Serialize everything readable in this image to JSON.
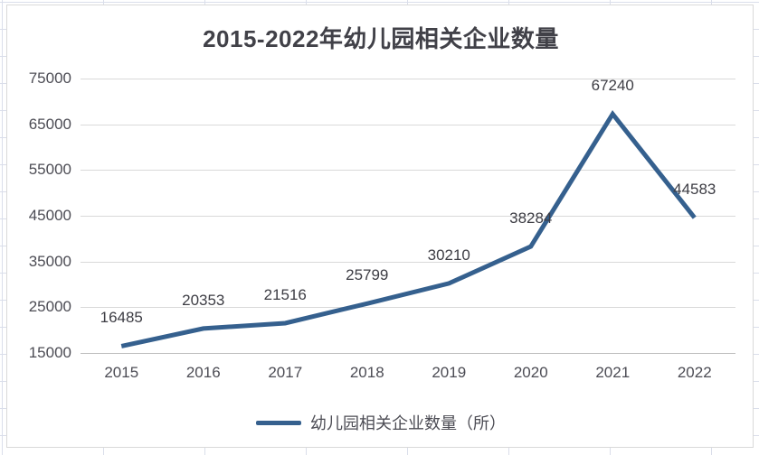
{
  "chart_data": {
    "type": "line",
    "title": "2015-2022年幼儿园相关企业数量",
    "categories": [
      "2015",
      "2016",
      "2017",
      "2018",
      "2019",
      "2020",
      "2021",
      "2022"
    ],
    "series": [
      {
        "name": "幼儿园相关企业数量（所）",
        "values": [
          16485,
          20353,
          21516,
          25799,
          30210,
          38284,
          67240,
          44583
        ]
      }
    ],
    "yticks": [
      "75000",
      "65000",
      "55000",
      "45000",
      "35000",
      "25000",
      "15000"
    ],
    "ylim": [
      15000,
      75000
    ],
    "ytick_step": 10000,
    "xlabel": "",
    "ylabel": "",
    "grid": true,
    "data_labels": true,
    "legend_position": "bottom",
    "line_color": "#35608E",
    "gridline_color": "#d9d9d9",
    "axis_line_color": "#bfbfbf",
    "text_color": "#4c4c54"
  }
}
